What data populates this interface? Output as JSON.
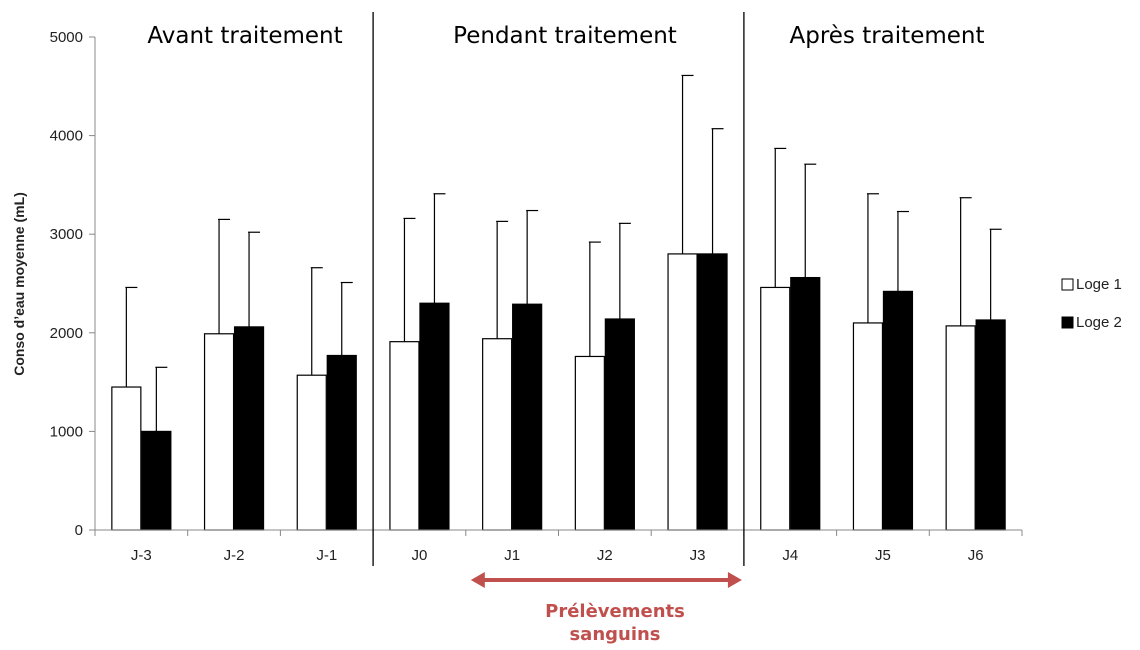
{
  "chart_data": {
    "type": "bar",
    "ylabel": "Conso d’eau moyenne (mL)",
    "xlabel": "",
    "ylim": [
      0,
      5000
    ],
    "yticks": [
      "0",
      "1000",
      "2000",
      "3000",
      "4000",
      "5000"
    ],
    "categories": [
      "J-3",
      "J-2",
      "J-1",
      "J0",
      "J1",
      "J2",
      "J3",
      "J4",
      "J5",
      "J6"
    ],
    "series": [
      {
        "name": "Loge 1",
        "color": "#ffffff",
        "values": [
          1450,
          1990,
          1570,
          1910,
          1940,
          1760,
          2800,
          2460,
          2100,
          2070
        ],
        "error_upper": [
          2460,
          3150,
          2660,
          3160,
          3130,
          2920,
          4610,
          3870,
          3410,
          3370
        ]
      },
      {
        "name": "Loge 2",
        "color": "#000000",
        "values": [
          1000,
          2060,
          1770,
          2300,
          2290,
          2140,
          2800,
          2560,
          2420,
          2130
        ],
        "error_upper": [
          1650,
          3020,
          2510,
          3410,
          3240,
          3110,
          4070,
          3710,
          3230,
          3050
        ]
      }
    ],
    "phases": [
      {
        "label": "Avant traitement",
        "categories": [
          "J-3",
          "J-2",
          "J-1"
        ]
      },
      {
        "label": "Pendant traitement",
        "categories": [
          "J0",
          "J1",
          "J2",
          "J3"
        ]
      },
      {
        "label": "Après traitement",
        "categories": [
          "J4",
          "J5",
          "J6"
        ]
      }
    ],
    "annotation": {
      "line1": "Prélèvements",
      "line2": "sanguins",
      "color": "#c0504d",
      "spans": [
        "J1",
        "J3"
      ]
    },
    "legend_position": "right"
  }
}
